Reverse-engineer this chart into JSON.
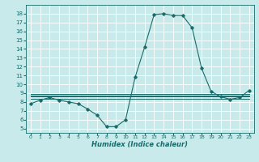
{
  "title": "",
  "xlabel": "Humidex (Indice chaleur)",
  "ylabel": "",
  "bg_color": "#c8eaea",
  "grid_color": "#ffffff",
  "line_color": "#1a6b6b",
  "xlim": [
    -0.5,
    23.5
  ],
  "ylim": [
    4.5,
    19.0
  ],
  "yticks": [
    5,
    6,
    7,
    8,
    9,
    10,
    11,
    12,
    13,
    14,
    15,
    16,
    17,
    18
  ],
  "xticks": [
    0,
    1,
    2,
    3,
    4,
    5,
    6,
    7,
    8,
    9,
    10,
    11,
    12,
    13,
    14,
    15,
    16,
    17,
    18,
    19,
    20,
    21,
    22,
    23
  ],
  "lines": [
    [
      0,
      7.8
    ],
    [
      1,
      8.2
    ],
    [
      2,
      8.5
    ],
    [
      3,
      8.2
    ],
    [
      4,
      8.0
    ],
    [
      5,
      7.8
    ],
    [
      6,
      7.2
    ],
    [
      7,
      6.5
    ],
    [
      8,
      5.2
    ],
    [
      9,
      5.2
    ],
    [
      10,
      6.0
    ],
    [
      11,
      10.8
    ],
    [
      12,
      14.2
    ],
    [
      13,
      17.9
    ],
    [
      14,
      18.0
    ],
    [
      15,
      17.8
    ],
    [
      16,
      17.8
    ],
    [
      17,
      16.4
    ],
    [
      18,
      11.8
    ],
    [
      19,
      9.2
    ],
    [
      20,
      8.6
    ],
    [
      21,
      8.3
    ],
    [
      22,
      8.5
    ],
    [
      23,
      9.3
    ]
  ],
  "flat_lines": [
    {
      "x_start": 0,
      "x_end": 23,
      "y": 8.4
    },
    {
      "x_start": 0,
      "x_end": 23,
      "y": 8.6
    },
    {
      "x_start": 0,
      "x_end": 23,
      "y": 8.75
    },
    {
      "x_start": 0,
      "x_end": 23,
      "y": 8.9
    }
  ]
}
